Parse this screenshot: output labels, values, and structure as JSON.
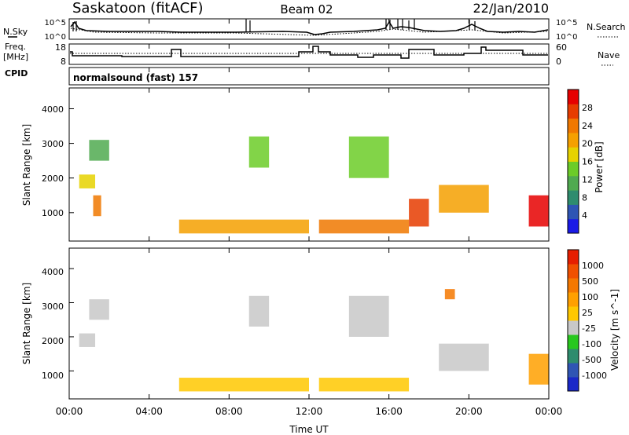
{
  "header": {
    "station": "Saskatoon (fitACF)",
    "beam": "Beam 02",
    "date": "22/Jan/2010"
  },
  "side_labels": {
    "nsky": "N.Sky",
    "freq_line1": "Freq.",
    "freq_line2": "[MHz]",
    "cpid": "CPID",
    "nsearch": "N.Search",
    "nave": "Nave"
  },
  "cpid_value": "normalsound (fast) 157",
  "noise_panel": {
    "left_ticks": [
      "10^5",
      "10^0"
    ],
    "right_ticks": [
      "10^5",
      "10^0"
    ]
  },
  "freq_panel": {
    "left_ticks": [
      "18",
      "8"
    ],
    "right_ticks": [
      "60",
      "0"
    ]
  },
  "time_axis": {
    "label": "Time UT",
    "ticks": [
      "00:00",
      "04:00",
      "08:00",
      "12:00",
      "16:00",
      "20:00",
      "00:00"
    ]
  },
  "colors": {
    "power": [
      "#1a1ae6",
      "#2e55b4",
      "#2e8c6e",
      "#50aa50",
      "#6ccc28",
      "#e6d200",
      "#f5a000",
      "#f07800",
      "#e63c00",
      "#e60000"
    ],
    "velocity": [
      "#1a28c8",
      "#2f55b4",
      "#2e8c6e",
      "#28c81e",
      "#c8c8c8",
      "#ffc800",
      "#ffa000",
      "#f57800",
      "#f05000",
      "#e61e00"
    ]
  },
  "chart_data": [
    {
      "type": "heatmap",
      "name": "power",
      "ylabel": "Slant Range [km]",
      "ylim": [
        180,
        4600
      ],
      "yticks": [
        "1000",
        "2000",
        "3000",
        "4000"
      ],
      "xlim": [
        0,
        24
      ],
      "colorbar": {
        "label": "Power [dB]",
        "ticks": [
          "4",
          "8",
          "12",
          "16",
          "20",
          "24",
          "28"
        ]
      },
      "regions": [
        {
          "t": [
            0.5,
            1.3
          ],
          "r": [
            1700,
            2100
          ],
          "level": 5
        },
        {
          "t": [
            1.0,
            2.0
          ],
          "r": [
            2500,
            3100
          ],
          "level": 3
        },
        {
          "t": [
            1.2,
            1.6
          ],
          "r": [
            900,
            1500
          ],
          "level": 7
        },
        {
          "t": [
            5.5,
            12.0
          ],
          "r": [
            400,
            800
          ],
          "level": 6
        },
        {
          "t": [
            9.0,
            10.0
          ],
          "r": [
            2300,
            3200
          ],
          "level": 4
        },
        {
          "t": [
            12.5,
            17.0
          ],
          "r": [
            400,
            800
          ],
          "level": 7
        },
        {
          "t": [
            14.0,
            16.0
          ],
          "r": [
            2000,
            3200
          ],
          "level": 4
        },
        {
          "t": [
            17.0,
            18.0
          ],
          "r": [
            600,
            1400
          ],
          "level": 8
        },
        {
          "t": [
            18.5,
            21.0
          ],
          "r": [
            1000,
            1800
          ],
          "level": 6
        },
        {
          "t": [
            23.0,
            24.0
          ],
          "r": [
            600,
            1500
          ],
          "level": 9
        }
      ]
    },
    {
      "type": "heatmap",
      "name": "velocity",
      "ylabel": "Slant Range [km]",
      "ylim": [
        180,
        4600
      ],
      "yticks": [
        "1000",
        "2000",
        "3000",
        "4000"
      ],
      "xlim": [
        0,
        24
      ],
      "colorbar": {
        "label": "Velocity [m s^-1]",
        "ticks": [
          "1000",
          "500",
          "100",
          "25",
          "-25",
          "-100",
          "-500",
          "-1000"
        ]
      },
      "regions": [
        {
          "t": [
            0.5,
            1.3
          ],
          "r": [
            1700,
            2100
          ],
          "level": 4
        },
        {
          "t": [
            1.0,
            2.0
          ],
          "r": [
            2500,
            3100
          ],
          "level": 4
        },
        {
          "t": [
            5.5,
            12.0
          ],
          "r": [
            400,
            800
          ],
          "level": 5
        },
        {
          "t": [
            9.0,
            10.0
          ],
          "r": [
            2300,
            3200
          ],
          "level": 4
        },
        {
          "t": [
            12.5,
            17.0
          ],
          "r": [
            400,
            800
          ],
          "level": 5
        },
        {
          "t": [
            14.0,
            16.0
          ],
          "r": [
            2000,
            3200
          ],
          "level": 4
        },
        {
          "t": [
            18.5,
            21.0
          ],
          "r": [
            1000,
            1800
          ],
          "level": 4
        },
        {
          "t": [
            18.8,
            19.3
          ],
          "r": [
            3100,
            3400
          ],
          "level": 7
        },
        {
          "t": [
            23.0,
            24.0
          ],
          "r": [
            600,
            1500
          ],
          "level": 6
        }
      ]
    }
  ]
}
